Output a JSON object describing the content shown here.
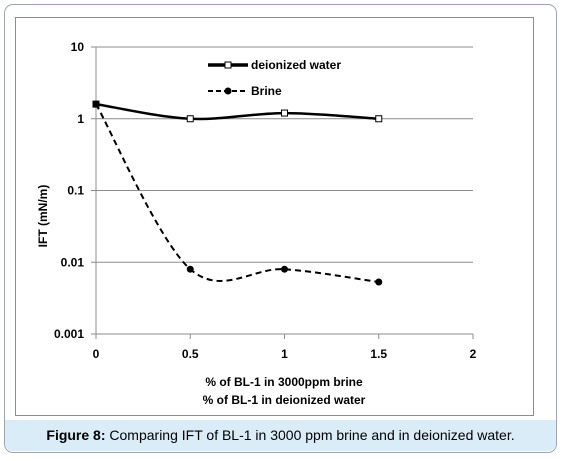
{
  "caption": {
    "label": "Figure 8:",
    "text": "Comparing IFT of BL-1 in 3000 ppm brine and in deionized water."
  },
  "chart_data": {
    "type": "line",
    "title": "",
    "xlabel_lines": [
      "% of BL-1  in 3000ppm brine",
      "% of BL-1 in deionized water"
    ],
    "ylabel": "IFT (mN/m)",
    "xlim": [
      0,
      2
    ],
    "ylim": [
      0.001,
      10
    ],
    "y_scale": "log",
    "x_ticks": [
      "0",
      "0.5",
      "1",
      "1.5",
      "2"
    ],
    "y_ticks": [
      "0.001",
      "0.01",
      "0.1",
      "1",
      "10"
    ],
    "grid": "horizontal",
    "legend": "top-center",
    "series": [
      {
        "name": "deionized water",
        "style": "solid",
        "marker": "open-square",
        "color": "#000000",
        "x": [
          0,
          0.5,
          1,
          1.5
        ],
        "y": [
          1.6,
          1.0,
          1.2,
          1.0
        ]
      },
      {
        "name": "Brine",
        "style": "dashed",
        "marker": "filled-circle",
        "color": "#000000",
        "x": [
          0,
          0.5,
          1,
          1.5
        ],
        "y": [
          1.6,
          0.008,
          0.008,
          0.0053
        ]
      }
    ]
  }
}
